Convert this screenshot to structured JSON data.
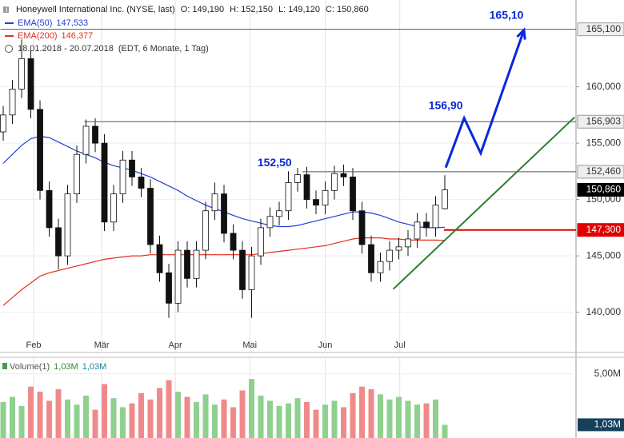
{
  "chart_data": {
    "type": "candlestick",
    "title": "Honeywell International Inc. (NYSE, last)",
    "header_stats": [
      "O: 149,190",
      "H: 152,150",
      "L: 149,120",
      "C: 150,860"
    ],
    "date_range": "18.01.2018 - 20.07.2018",
    "period": "(EDT, 6 Monate, 1 Tag)",
    "up_color": "#ffffff",
    "down_color": "#111111",
    "outline_color": "#111111",
    "open": [
      156000,
      157500,
      159800,
      162500,
      158000,
      150800,
      147500,
      145000,
      150500,
      154000,
      156500,
      155000,
      148000,
      150500,
      153500,
      152000,
      151000,
      146000,
      143500,
      140800,
      145500,
      143000,
      145500,
      149000,
      150500,
      147000,
      145500,
      142000,
      145000,
      147500,
      148500,
      149000,
      151500,
      152200,
      150000,
      149500,
      150800,
      152300,
      152000,
      149000,
      146000,
      143500,
      144500,
      145500,
      145800,
      146500,
      148000,
      147500,
      149190
    ],
    "high": [
      158300,
      160600,
      164200,
      163300,
      158800,
      151600,
      148300,
      151300,
      154800,
      157100,
      157200,
      155800,
      151300,
      154300,
      154300,
      152800,
      151800,
      146800,
      144300,
      146300,
      146300,
      146300,
      149800,
      151500,
      151300,
      147800,
      146300,
      145800,
      148300,
      149300,
      149800,
      152500,
      152800,
      152900,
      150800,
      151600,
      153000,
      153100,
      152800,
      149800,
      146800,
      145300,
      146300,
      146600,
      147300,
      148800,
      148800,
      150300,
      152150
    ],
    "low": [
      155200,
      156700,
      159000,
      157200,
      150000,
      146700,
      143800,
      144200,
      149700,
      153200,
      154200,
      147200,
      147200,
      149700,
      151200,
      150200,
      145200,
      142700,
      139500,
      140000,
      142200,
      142200,
      144700,
      148200,
      146200,
      144700,
      141200,
      139500,
      144200,
      146700,
      147700,
      148200,
      150700,
      149200,
      148700,
      148700,
      150000,
      151200,
      148200,
      145200,
      142700,
      142700,
      143700,
      144700,
      145000,
      145700,
      146700,
      146700,
      149120
    ],
    "close": [
      157500,
      159800,
      162500,
      158000,
      150800,
      147500,
      145000,
      150500,
      154000,
      156500,
      155000,
      148000,
      150500,
      153500,
      152000,
      151000,
      146000,
      143500,
      140800,
      145500,
      143000,
      145500,
      149000,
      150500,
      147000,
      145500,
      142000,
      145000,
      147500,
      148500,
      149000,
      151500,
      152200,
      150000,
      149500,
      150800,
      152300,
      152000,
      149000,
      146000,
      143500,
      144500,
      145500,
      145800,
      146500,
      148000,
      147500,
      149500,
      150860
    ],
    "overlays": [
      {
        "name": "EMA(50)",
        "value_label": "147,533",
        "color": "#2040d0",
        "values": [
          153200,
          154000,
          154800,
          155400,
          155600,
          155500,
          155100,
          154700,
          154300,
          154000,
          153700,
          153300,
          153000,
          152800,
          152600,
          152300,
          152000,
          151600,
          151200,
          150800,
          150300,
          149900,
          149500,
          149200,
          148900,
          148600,
          148300,
          148100,
          147900,
          147700,
          147600,
          147600,
          147700,
          147900,
          148100,
          148300,
          148500,
          148700,
          148900,
          148900,
          148800,
          148600,
          148300,
          148000,
          147800,
          147600,
          147500,
          147500,
          147533
        ]
      },
      {
        "name": "EMA(200)",
        "value_label": "146,377",
        "color": "#e03020",
        "values": [
          140600,
          141300,
          142000,
          142600,
          143200,
          143500,
          143700,
          143900,
          144100,
          144300,
          144500,
          144700,
          144800,
          144900,
          145000,
          145000,
          145100,
          145100,
          145100,
          145100,
          145100,
          145100,
          145100,
          145100,
          145100,
          145100,
          145100,
          145100,
          145200,
          145300,
          145400,
          145500,
          145600,
          145700,
          145800,
          145900,
          146100,
          146300,
          146500,
          146600,
          146600,
          146600,
          146500,
          146500,
          146400,
          146400,
          146400,
          146400,
          146377
        ]
      }
    ],
    "xlim": [
      -0.35,
      62.26
    ],
    "xticks": [
      {
        "value": 3.3,
        "label": "Feb"
      },
      {
        "value": 10.7,
        "label": "Mär"
      },
      {
        "value": 18.7,
        "label": "Apr"
      },
      {
        "value": 26.8,
        "label": "Mai"
      },
      {
        "value": 35.0,
        "label": "Jun"
      },
      {
        "value": 43.1,
        "label": "Jul"
      }
    ],
    "ylim": [
      136500,
      167700
    ],
    "yticks": [
      {
        "value": 140000,
        "label": "140,000"
      },
      {
        "value": 145000,
        "label": "145,000"
      },
      {
        "value": 150000,
        "label": "150,000"
      },
      {
        "value": 155000,
        "label": "155,000"
      },
      {
        "value": 160000,
        "label": "160,000"
      }
    ],
    "grid": true,
    "levels": [
      {
        "value": 165100,
        "label": "165,100",
        "start": -0.3,
        "line": true,
        "color": "#555555",
        "box": "#eeeeee",
        "text_color": "#333333"
      },
      {
        "value": 156903,
        "label": "156,903",
        "start": 8.8,
        "line": true,
        "color": "#555555",
        "box": "#eeeeee",
        "text_color": "#333333"
      },
      {
        "value": 152460,
        "label": "152,460",
        "start": 32.5,
        "line": true,
        "color": "#555555",
        "box": "#eeeeee",
        "text_color": "#333333"
      },
      {
        "value": 150860,
        "label": "150,860",
        "start": 48,
        "line": false,
        "color": "#000000",
        "box": "#000000",
        "text_color": "#ffffff"
      },
      {
        "value": 147300,
        "label": "147,300",
        "start": 47.9,
        "line": true,
        "color": "#e00000",
        "box": "#e00000",
        "text_color": "#ffffff"
      }
    ],
    "trendline": {
      "x": [
        42.4,
        62.1
      ],
      "y": [
        142050,
        157300
      ],
      "color": "#2e7d32"
    },
    "projection": {
      "x": [
        48.1,
        50.1,
        51.9,
        56.6
      ],
      "y": [
        152830,
        157230,
        154110,
        165030
      ],
      "color": "#0a28d8"
    },
    "annotations": [
      {
        "text": "165,10",
        "x": 54.7,
        "y": 166300
      },
      {
        "text": "156,90",
        "x": 48.1,
        "y": 158300
      },
      {
        "text": "152,50",
        "x": 29.5,
        "y": 153200
      }
    ],
    "volume": {
      "title": "Volume(1)",
      "labels": [
        "1,03M",
        "1,03M"
      ],
      "label_colors": [
        "#2e8b2e",
        "#1a8aa0"
      ],
      "up_color": "#8fd08f",
      "down_color": "#f08a8a",
      "values": [
        2.8,
        3.2,
        2.5,
        4.0,
        3.6,
        2.9,
        3.8,
        3.0,
        2.6,
        3.3,
        2.2,
        4.2,
        3.1,
        2.4,
        2.7,
        3.5,
        3.0,
        3.9,
        4.5,
        3.6,
        3.2,
        2.8,
        3.4,
        2.6,
        3.0,
        2.4,
        3.7,
        4.6,
        3.3,
        2.9,
        2.5,
        2.7,
        3.1,
        2.8,
        2.2,
        2.6,
        2.9,
        2.4,
        3.5,
        4.0,
        3.8,
        3.4,
        3.0,
        3.2,
        2.9,
        2.6,
        2.7,
        3.0,
        1.03
      ],
      "ylim": [
        0,
        6.1
      ],
      "yticks": [
        {
          "value": 5,
          "label": "5,00M"
        }
      ],
      "current": {
        "value": 1.03,
        "label": "1,03M",
        "box": "#16405a"
      }
    }
  }
}
